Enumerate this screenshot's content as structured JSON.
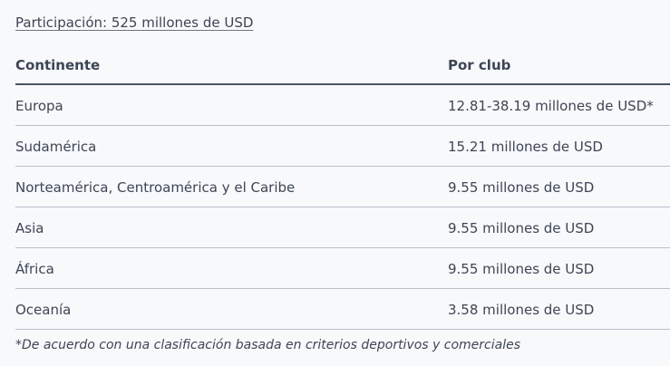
{
  "heading": "Participación: 525 millones de USD",
  "table": {
    "headers": [
      "Continente",
      "Por club"
    ],
    "rows": [
      [
        "Europa",
        "12.81-38.19 millones de USD*"
      ],
      [
        "Sudamérica",
        "15.21 millones de USD"
      ],
      [
        "Norteamérica, Centroamérica y el Caribe",
        "9.55 millones de USD"
      ],
      [
        "Asia",
        "9.55 millones de USD"
      ],
      [
        "África",
        "9.55 millones de USD"
      ],
      [
        "Oceanía",
        "3.58 millones de USD"
      ]
    ]
  },
  "footnote": "*De acuerdo con una clasificación basada en criterios deportivos y comerciales"
}
